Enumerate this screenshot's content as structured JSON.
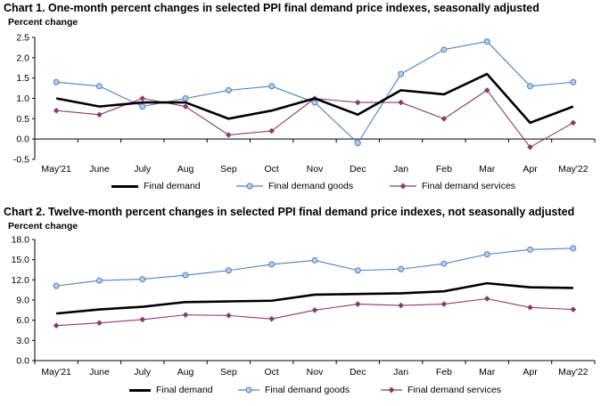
{
  "charts": [
    {
      "title": "Chart 1. One-month percent changes in selected PPI final demand price indexes, seasonally adjusted",
      "ylabel": "Percent change",
      "y_ticks": [
        "2.5",
        "2.0",
        "1.5",
        "1.0",
        "0.5",
        "0.0",
        "-0.5"
      ],
      "legend": [
        "Final demand",
        "Final demand goods",
        "Final demand services"
      ]
    },
    {
      "title": "Chart 2. Twelve-month percent changes in selected PPI final demand price indexes, not seasonally adjusted",
      "ylabel": "Percent change",
      "y_ticks": [
        "18.0",
        "15.0",
        "12.0",
        "9.0",
        "6.0",
        "3.0",
        "0.0"
      ],
      "legend": [
        "Final demand",
        "Final demand goods",
        "Final demand services"
      ]
    }
  ],
  "chart_data": [
    {
      "type": "line",
      "title": "Chart 1. One-month percent changes in selected PPI final demand price indexes, seasonally adjusted",
      "ylabel": "Percent change",
      "xlabel": "",
      "categories": [
        "May'21",
        "June",
        "July",
        "Aug",
        "Sep",
        "Oct",
        "Nov",
        "Dec",
        "Jan",
        "Feb",
        "Mar",
        "Apr",
        "May'22"
      ],
      "ylim": [
        -0.5,
        2.5
      ],
      "y_step": 0.5,
      "series": [
        {
          "name": "Final demand",
          "color": "#000000",
          "marker": "none",
          "values": [
            1.0,
            0.8,
            0.9,
            0.9,
            0.5,
            0.7,
            1.0,
            0.6,
            1.2,
            1.1,
            1.6,
            0.4,
            0.8
          ]
        },
        {
          "name": "Final demand goods",
          "color": "#4f81bd",
          "marker": "circle",
          "values": [
            1.4,
            1.3,
            0.8,
            1.0,
            1.2,
            1.3,
            0.9,
            -0.1,
            1.6,
            2.2,
            2.4,
            1.3,
            1.4
          ]
        },
        {
          "name": "Final demand services",
          "color": "#8b3a6b",
          "marker": "diamond",
          "values": [
            0.7,
            0.6,
            1.0,
            0.8,
            0.1,
            0.2,
            1.0,
            0.9,
            0.9,
            0.5,
            1.2,
            -0.2,
            0.4
          ]
        }
      ],
      "legend_position": "bottom",
      "grid": false
    },
    {
      "type": "line",
      "title": "Chart 2. Twelve-month percent changes in selected PPI final demand price indexes, not seasonally adjusted",
      "ylabel": "Percent change",
      "xlabel": "",
      "categories": [
        "May'21",
        "June",
        "July",
        "Aug",
        "Sep",
        "Oct",
        "Nov",
        "Dec",
        "Jan",
        "Feb",
        "Mar",
        "Apr",
        "May'22"
      ],
      "ylim": [
        0,
        18
      ],
      "y_step": 3,
      "series": [
        {
          "name": "Final demand",
          "color": "#000000",
          "marker": "none",
          "values": [
            7.0,
            7.6,
            8.0,
            8.7,
            8.8,
            8.9,
            9.8,
            9.9,
            10.0,
            10.3,
            11.5,
            10.9,
            10.8
          ]
        },
        {
          "name": "Final demand goods",
          "color": "#4f81bd",
          "marker": "circle",
          "values": [
            11.1,
            11.9,
            12.1,
            12.7,
            13.4,
            14.3,
            14.9,
            13.4,
            13.6,
            14.4,
            15.8,
            16.5,
            16.7
          ]
        },
        {
          "name": "Final demand services",
          "color": "#8b3a6b",
          "marker": "diamond",
          "values": [
            5.2,
            5.6,
            6.1,
            6.8,
            6.7,
            6.2,
            7.5,
            8.4,
            8.2,
            8.4,
            9.2,
            7.9,
            7.6
          ]
        }
      ],
      "legend_position": "bottom",
      "grid": false
    }
  ]
}
